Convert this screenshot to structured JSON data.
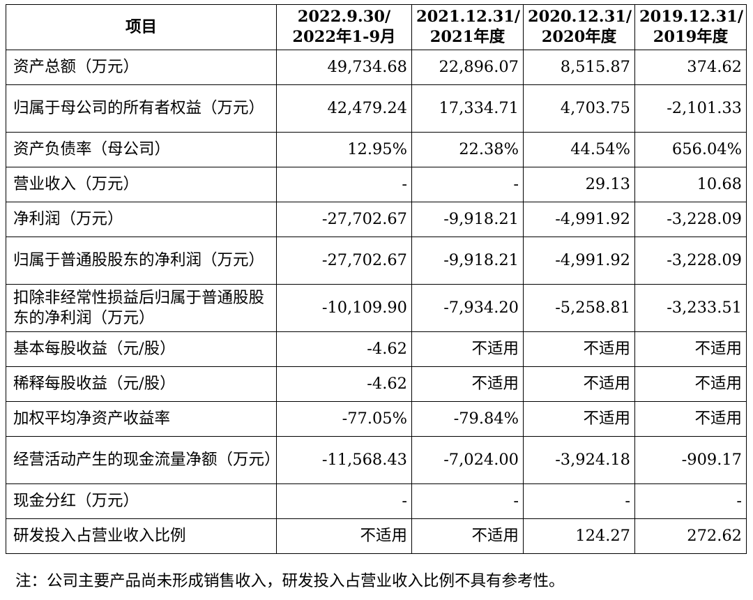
{
  "table": {
    "header": {
      "item": "项目",
      "periods": [
        {
          "line1": "2022.9.30/",
          "line2": "2022年1-9月"
        },
        {
          "line1": "2021.12.31/",
          "line2": "2021年度"
        },
        {
          "line1": "2020.12.31/",
          "line2": "2020年度"
        },
        {
          "line1": "2019.12.31/",
          "line2": "2019年度"
        }
      ]
    },
    "rows": [
      {
        "label": "资产总额（万元）",
        "values": [
          "49,734.68",
          "22,896.07",
          "8,515.87",
          "374.62"
        ],
        "tall": false
      },
      {
        "label": "归属于母公司的所有者权益（万元）",
        "values": [
          "42,479.24",
          "17,334.71",
          "4,703.75",
          "-2,101.33"
        ],
        "tall": true
      },
      {
        "label": "资产负债率（母公司）",
        "values": [
          "12.95%",
          "22.38%",
          "44.54%",
          "656.04%"
        ],
        "tall": false
      },
      {
        "label": "营业收入（万元）",
        "values": [
          "-",
          "-",
          "29.13",
          "10.68"
        ],
        "tall": false
      },
      {
        "label": "净利润（万元）",
        "values": [
          "-27,702.67",
          "-9,918.21",
          "-4,991.92",
          "-3,228.09"
        ],
        "tall": false
      },
      {
        "label": "归属于普通股股东的净利润（万元）",
        "values": [
          "-27,702.67",
          "-9,918.21",
          "-4,991.92",
          "-3,228.09"
        ],
        "tall": true
      },
      {
        "label": "扣除非经常性损益后归属于普通股股东的净利润（万元）",
        "values": [
          "-10,109.90",
          "-7,934.20",
          "-5,258.81",
          "-3,233.51"
        ],
        "tall": true
      },
      {
        "label": "基本每股收益（元/股）",
        "values": [
          "-4.62",
          "不适用",
          "不适用",
          "不适用"
        ],
        "tall": false
      },
      {
        "label": "稀释每股收益（元/股）",
        "values": [
          "-4.62",
          "不适用",
          "不适用",
          "不适用"
        ],
        "tall": false
      },
      {
        "label": "加权平均净资产收益率",
        "values": [
          "-77.05%",
          "-79.84%",
          "不适用",
          "不适用"
        ],
        "tall": false
      },
      {
        "label": "经营活动产生的现金流量净额（万元）",
        "values": [
          "-11,568.43",
          "-7,024.00",
          "-3,924.18",
          "-909.17"
        ],
        "tall": true
      },
      {
        "label": "现金分红（万元）",
        "values": [
          "-",
          "-",
          "-",
          "-"
        ],
        "tall": false
      },
      {
        "label": "研发投入占营业收入比例",
        "values": [
          "不适用",
          "不适用",
          "124.27",
          "272.62"
        ],
        "tall": false
      }
    ]
  },
  "note": "注：公司主要产品尚未形成销售收入，研发投入占营业收入比例不具有参考性。"
}
